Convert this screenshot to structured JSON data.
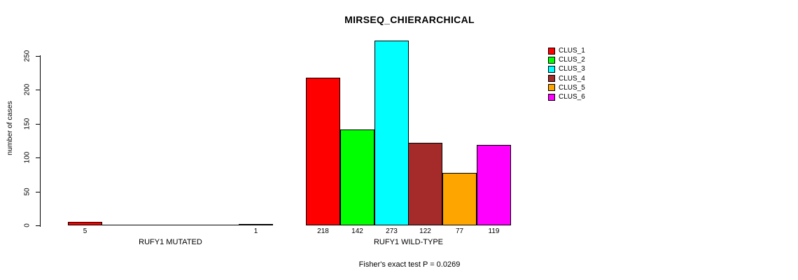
{
  "chart_data": {
    "type": "bar",
    "title": "MIRSEQ_CHIERARCHICAL",
    "ylabel": "number of cases",
    "xlabel": "",
    "caption": "Fisher's exact test P = 0.0269",
    "ylim": [
      0,
      250
    ],
    "yticks": [
      0,
      50,
      100,
      150,
      200,
      250
    ],
    "grid": false,
    "legend_position": "top-right",
    "background_color": "#ffffff",
    "bar_border_color": "#000000",
    "show_zero_value_labels": false,
    "categories": [
      "RUFY1 MUTATED",
      "RUFY1 WILD-TYPE"
    ],
    "series": [
      {
        "name": "CLUS_1",
        "color": "#ff0000",
        "values": [
          5,
          218
        ]
      },
      {
        "name": "CLUS_2",
        "color": "#00ff00",
        "values": [
          0,
          142
        ]
      },
      {
        "name": "CLUS_3",
        "color": "#00ffff",
        "values": [
          0,
          273
        ]
      },
      {
        "name": "CLUS_4",
        "color": "#a52a2a",
        "values": [
          0,
          122
        ]
      },
      {
        "name": "CLUS_5",
        "color": "#ffa500",
        "values": [
          0,
          77
        ]
      },
      {
        "name": "CLUS_6",
        "color": "#ff00ff",
        "values": [
          1,
          119
        ]
      }
    ],
    "bar_value_labels_shown": [
      "5",
      "1",
      "218",
      "142",
      "273",
      "122",
      "77",
      "119"
    ]
  }
}
